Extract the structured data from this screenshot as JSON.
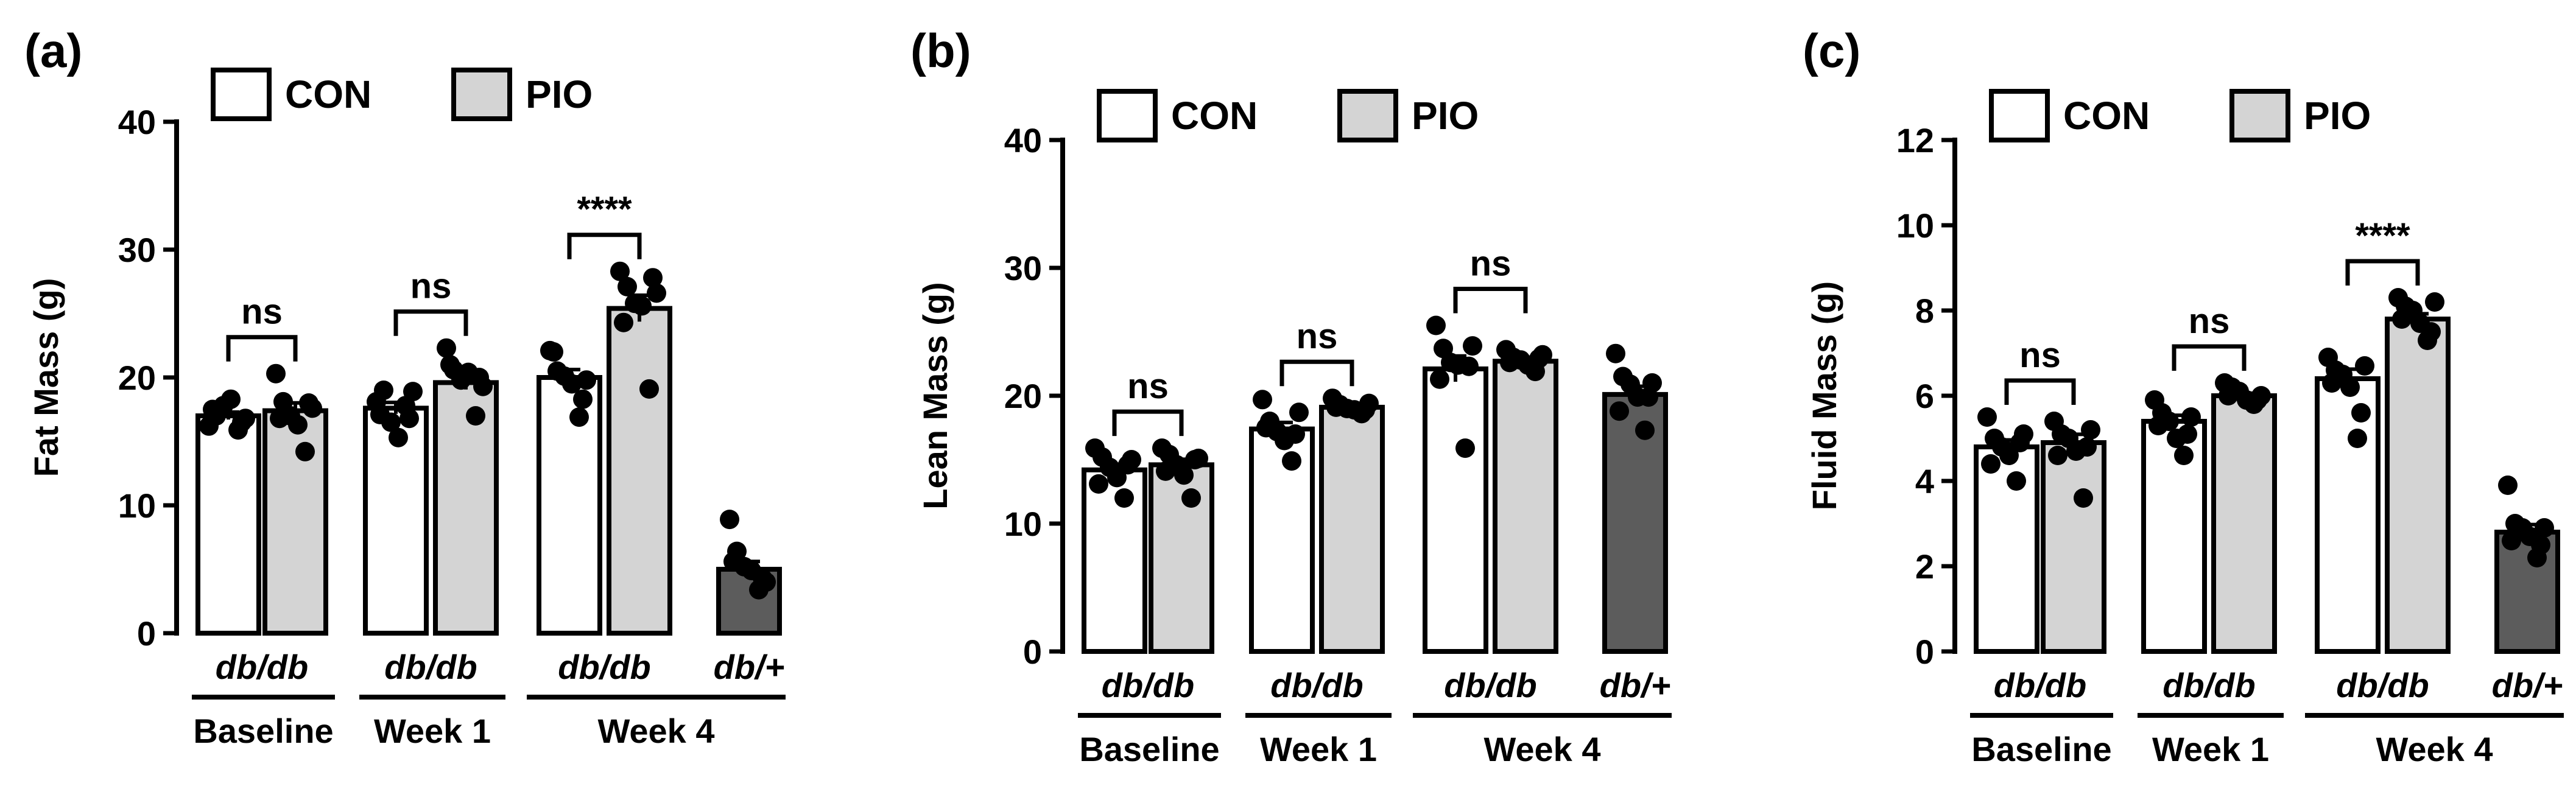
{
  "colors": {
    "con": "#ffffff",
    "pio": "#d4d4d4",
    "dbplus": "#5c5c5c",
    "ink": "#000000"
  },
  "chart_data": [
    {
      "type": "bar",
      "panel_label": "(a)",
      "ylabel": "Fat Mass (g)",
      "ylim": [
        0,
        40
      ],
      "yticks": [
        "0",
        "10",
        "20",
        "30",
        "40"
      ],
      "legend": [
        "CON",
        "PIO"
      ],
      "genotype_labels": [
        "db/db",
        "db/db",
        "db/db",
        "db/+"
      ],
      "group_labels": [
        "Baseline",
        "Week 1",
        "Week 4"
      ],
      "significance": [
        "ns",
        "ns",
        "****"
      ],
      "series": [
        {
          "name": "CON",
          "values": [
            17.0,
            17.6,
            20.0
          ]
        },
        {
          "name": "PIO",
          "values": [
            17.4,
            19.6,
            25.4
          ]
        },
        {
          "name": "db/+",
          "values": [
            5.0
          ]
        }
      ],
      "points": [
        [
          16.2,
          17.0,
          17.8,
          18.3,
          15.9,
          16.8,
          17.5,
          16.5
        ],
        [
          20.3,
          18.1,
          17.0,
          16.3,
          14.2,
          17.6,
          16.8,
          18.0
        ],
        [
          18.1,
          19.0,
          16.5,
          15.3,
          17.8,
          18.9,
          17.1,
          16.8
        ],
        [
          22.3,
          20.6,
          19.8,
          20.4,
          17.0,
          19.3,
          21.0,
          20.0
        ],
        [
          22.1,
          20.5,
          20.1,
          19.5,
          16.9,
          19.8,
          22.0,
          18.3
        ],
        [
          28.3,
          27.1,
          25.8,
          25.6,
          19.1,
          26.6,
          24.3,
          27.8
        ],
        [
          8.9,
          6.4,
          5.2,
          4.9,
          3.4,
          4.0,
          5.6,
          4.3
        ]
      ]
    },
    {
      "type": "bar",
      "panel_label": "(b)",
      "ylabel": "Lean Mass (g)",
      "ylim": [
        0,
        40
      ],
      "yticks": [
        "0",
        "10",
        "20",
        "30",
        "40"
      ],
      "legend": [
        "CON",
        "PIO"
      ],
      "genotype_labels": [
        "db/db",
        "db/db",
        "db/db",
        "db/+"
      ],
      "group_labels": [
        "Baseline",
        "Week 1",
        "Week 4"
      ],
      "significance": [
        "ns",
        "ns",
        "ns"
      ],
      "series": [
        {
          "name": "CON",
          "values": [
            14.2,
            17.4,
            22.1
          ]
        },
        {
          "name": "PIO",
          "values": [
            14.6,
            19.1,
            22.7
          ]
        },
        {
          "name": "db/+",
          "values": [
            20.1
          ]
        }
      ],
      "points": [
        [
          15.9,
          15.2,
          14.4,
          13.6,
          12.0,
          15.0,
          13.1,
          14.6
        ],
        [
          15.9,
          15.4,
          14.6,
          13.8,
          12.0,
          15.1,
          14.1,
          15.0
        ],
        [
          19.7,
          18.0,
          17.2,
          16.5,
          14.9,
          18.7,
          17.5,
          17.0
        ],
        [
          19.8,
          19.3,
          19.0,
          18.9,
          18.6,
          19.4,
          19.1,
          18.9
        ],
        [
          25.5,
          23.7,
          22.6,
          22.4,
          15.9,
          23.9,
          21.3,
          22.3
        ],
        [
          23.6,
          23.0,
          22.8,
          22.4,
          21.9,
          23.2,
          22.6,
          22.9
        ],
        [
          23.3,
          21.5,
          20.9,
          19.9,
          17.3,
          21.0,
          18.8,
          19.9
        ]
      ]
    },
    {
      "type": "bar",
      "panel_label": "(c)",
      "ylabel": "Fluid Mass (g)",
      "ylim": [
        0,
        12
      ],
      "yticks": [
        "0",
        "2",
        "4",
        "6",
        "8",
        "10",
        "12"
      ],
      "legend": [
        "CON",
        "PIO"
      ],
      "genotype_labels": [
        "db/db",
        "db/db",
        "db/db",
        "db/+"
      ],
      "group_labels": [
        "Baseline",
        "Week 1",
        "Week 4"
      ],
      "significance": [
        "ns",
        "ns",
        "****"
      ],
      "series": [
        {
          "name": "CON",
          "values": [
            4.8,
            5.4,
            6.4
          ]
        },
        {
          "name": "PIO",
          "values": [
            4.9,
            6.0,
            7.8
          ]
        },
        {
          "name": "db/+",
          "values": [
            2.8
          ]
        }
      ],
      "points": [
        [
          5.5,
          5.0,
          4.8,
          4.6,
          4.0,
          5.1,
          4.4,
          4.9
        ],
        [
          5.4,
          5.1,
          5.0,
          4.7,
          3.6,
          5.2,
          4.6,
          4.8
        ],
        [
          5.9,
          5.6,
          5.4,
          5.0,
          4.6,
          5.5,
          5.3,
          5.1
        ],
        [
          6.3,
          6.2,
          6.1,
          5.9,
          5.8,
          6.0,
          6.0,
          5.9
        ],
        [
          6.9,
          6.6,
          6.5,
          6.2,
          5.0,
          6.7,
          6.3,
          5.6
        ],
        [
          8.3,
          8.1,
          8.0,
          7.7,
          7.3,
          8.2,
          7.8,
          7.5
        ],
        [
          3.9,
          3.0,
          2.9,
          2.7,
          2.2,
          2.9,
          2.6,
          2.5
        ]
      ]
    }
  ]
}
